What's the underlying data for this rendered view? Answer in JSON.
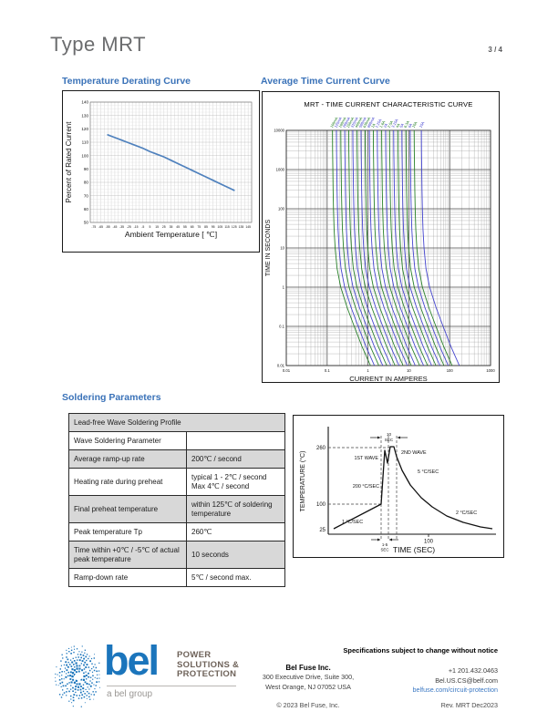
{
  "page": {
    "title": "Type MRT",
    "page_number": "3 / 4"
  },
  "sections": {
    "derating_heading": "Temperature Derating Curve",
    "tcc_heading": "Average Time Current Curve",
    "soldering_heading": "Soldering Parameters"
  },
  "colors": {
    "accent_blue": "#3a72b8",
    "bel_blue": "#1b75bc",
    "link_blue": "#3b78c3",
    "derating_line": "#4f81bd",
    "curve_green": "#1e7a1e",
    "curve_blue": "#3a3acc",
    "table_shade": "#d8d8d8"
  },
  "chart_data": [
    {
      "id": "temperature_derating",
      "type": "line",
      "title": "",
      "xlabel": "Ambient Temperature [ ℃]",
      "ylabel": "Percent of Rated Current",
      "xlim": [
        -80,
        150
      ],
      "ylim": [
        50,
        140
      ],
      "x_ticks": [
        -75,
        -65,
        -55,
        -45,
        -35,
        -25,
        -15,
        -5,
        5,
        15,
        25,
        35,
        45,
        55,
        65,
        75,
        85,
        95,
        105,
        115,
        125,
        135,
        145
      ],
      "y_ticks": [
        50,
        60,
        70,
        80,
        90,
        100,
        110,
        120,
        130,
        140
      ],
      "grid": true,
      "series": [
        {
          "name": "derating",
          "color": "#4f81bd",
          "x": [
            -55,
            -45,
            -35,
            -25,
            -15,
            -5,
            5,
            15,
            25,
            35,
            45,
            55,
            65,
            75,
            85,
            95,
            105,
            115,
            125
          ],
          "y": [
            115.5,
            113.5,
            111.5,
            109.5,
            107.5,
            105.5,
            103,
            101,
            99,
            96.5,
            94,
            91.5,
            89,
            86.5,
            84,
            81.5,
            79,
            76.5,
            74
          ]
        }
      ]
    },
    {
      "id": "time_current_characteristic",
      "type": "line",
      "title": "MRT - TIME CURRENT CHARACTERISTIC CURVE",
      "xlabel": "CURRENT IN AMPERES",
      "ylabel": "TIME IN SECONDS",
      "x_scale": "log",
      "y_scale": "log",
      "xlim": [
        0.01,
        1000
      ],
      "ylim": [
        0.01,
        10000
      ],
      "x_ticks": [
        0.01,
        0.1,
        1,
        10,
        100,
        1000
      ],
      "y_ticks": [
        0.01,
        0.1,
        1,
        10,
        100,
        1000,
        10000
      ],
      "grid": true,
      "curve_color_cycle": [
        "#1e7a1e",
        "#3a3acc"
      ],
      "ratings": [
        {
          "label": "100mA",
          "amps": 0.1
        },
        {
          "label": "125mA",
          "amps": 0.125
        },
        {
          "label": "160mA",
          "amps": 0.16
        },
        {
          "label": "200mA",
          "amps": 0.2
        },
        {
          "label": "250mA",
          "amps": 0.25
        },
        {
          "label": "315mA",
          "amps": 0.315
        },
        {
          "label": "400mA",
          "amps": 0.4
        },
        {
          "label": "500mA",
          "amps": 0.5
        },
        {
          "label": "630mA",
          "amps": 0.63
        },
        {
          "label": "800mA",
          "amps": 0.8
        },
        {
          "label": "1A",
          "amps": 1
        },
        {
          "label": "1.25A",
          "amps": 1.25
        },
        {
          "label": "1.6A",
          "amps": 1.6
        },
        {
          "label": "2A",
          "amps": 2
        },
        {
          "label": "2.5A",
          "amps": 2.5
        },
        {
          "label": "3.15A",
          "amps": 3.15
        },
        {
          "label": "4A",
          "amps": 4
        },
        {
          "label": "5A",
          "amps": 5
        },
        {
          "label": "6.3A",
          "amps": 6.3
        },
        {
          "label": "8A",
          "amps": 8
        },
        {
          "label": "10A",
          "amps": 10
        },
        {
          "label": "15A",
          "amps": 15
        }
      ],
      "melting_profile": {
        "t": [
          10000,
          3000,
          1000,
          300,
          100,
          30,
          10,
          3,
          1,
          0.3,
          0.1,
          0.03,
          0.01
        ],
        "current_multiplier": [
          1.35,
          1.36,
          1.38,
          1.4,
          1.43,
          1.48,
          1.57,
          1.75,
          2.15,
          3.1,
          4.6,
          7.2,
          11.5
        ]
      }
    },
    {
      "id": "wave_solder_profile",
      "type": "line",
      "title": "",
      "xlabel": "TIME (SEC)",
      "ylabel": "TEMPERATURE (°C)",
      "y_tick_labels": [
        "260",
        "100",
        "25"
      ],
      "x_tick_labels": [
        "100"
      ],
      "annotations": {
        "top_duration": "10",
        "top_duration_unit": "SEC",
        "wave1": "1ST WAVE",
        "wave2": "2ND WAVE",
        "ramp_rate": "200 °C/SEC",
        "cool_rate_1": "5 °C/SEC",
        "cool_rate_2": "2 °C/SEC",
        "preheat_rate": "1 °C/SEC",
        "bottom_duration": "1-5",
        "bottom_duration_unit": "SEC"
      }
    }
  ],
  "soldering_table": {
    "rows": [
      {
        "shaded": true,
        "cells": [
          {
            "text": "Lead-free Wave Soldering Profile",
            "colspan": 2
          }
        ]
      },
      {
        "shaded": false,
        "cells": [
          {
            "text": "Wave Soldering Parameter"
          },
          {
            "text": ""
          }
        ]
      },
      {
        "shaded": true,
        "cells": [
          {
            "text": "Average ramp-up rate"
          },
          {
            "text": "200℃ / second"
          }
        ]
      },
      {
        "shaded": false,
        "cells": [
          {
            "text": "Heating rate during preheat"
          },
          {
            "lines": [
              "typical 1 - 2℃ / second",
              "Max 4℃ / second"
            ]
          }
        ]
      },
      {
        "shaded": true,
        "cells": [
          {
            "text": "Final preheat temperature"
          },
          {
            "lines": [
              "within 125℃ of soldering",
              "temperature"
            ]
          }
        ]
      },
      {
        "shaded": false,
        "cells": [
          {
            "text": "Peak temperature Tp"
          },
          {
            "text": "260℃"
          }
        ]
      },
      {
        "shaded": true,
        "cells": [
          {
            "lines": [
              "Time within +0℃ / -5℃ of actual",
              "peak temperature"
            ]
          },
          {
            "text": "10 seconds"
          }
        ]
      },
      {
        "shaded": false,
        "cells": [
          {
            "text": "Ramp-down rate"
          },
          {
            "text": "5℃ / second max."
          }
        ]
      }
    ]
  },
  "footer": {
    "disclaimer": "Specifications subject to change without notice",
    "logo": {
      "wordmark": "bel",
      "tagline_lines": [
        "POWER",
        "SOLUTIONS &",
        "PROTECTION"
      ],
      "subbrand": "a bel group"
    },
    "company": {
      "name": "Bel Fuse Inc.",
      "address_line1": "300 Executive Drive, Suite 300,",
      "address_line2": "West Orange, NJ 07052 USA",
      "copyright": "© 2023 Bel Fuse, Inc."
    },
    "contact": {
      "phone": "+1 201.432.0463",
      "email": "Bel.US.CS@belf.com",
      "website": "belfuse.com/circuit-protection",
      "revision": "Rev. MRT Dec2023"
    }
  }
}
